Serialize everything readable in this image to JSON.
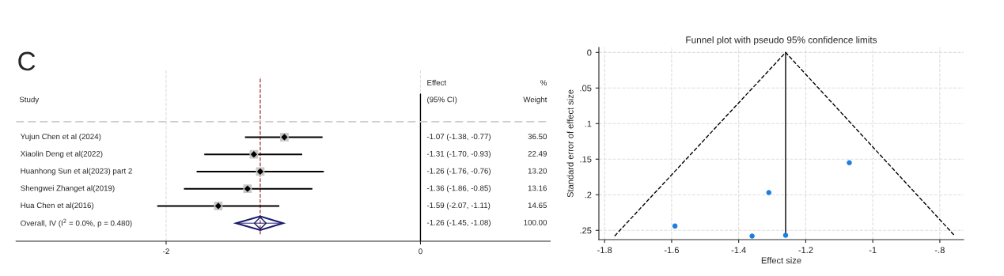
{
  "chart_data": [
    {
      "type": "scatter",
      "orientation": "horizontal",
      "categories": [
        "Yujun Chen et al (2024)",
        "Xiaolin Deng et al(2022)",
        "Huanhong Sun et al(2023) part 2",
        "Shengwei Zhanget al(2019)",
        "Hua Chen et al(2016)",
        "Overall, IV (I$^{2}$ = 0.0%, p = 0.480)"
      ],
      "series": [
        {
          "type": "scatter",
          "color": "#000000",
          "marker": "diamond",
          "values": [
            -1.07,
            -1.31,
            -1.26,
            -1.36,
            -1.59,
            null
          ],
          "errors": [
            [
              -1.38,
              -0.77
            ],
            [
              -1.7,
              -0.93
            ],
            [
              -1.76,
              -0.76
            ],
            [
              -1.86,
              -0.85
            ],
            [
              -2.07,
              -1.11
            ],
            null
          ]
        },
        {
          "type": "scatter",
          "color": "#1a1a6e",
          "marker": "diamond",
          "values": [
            null,
            null,
            null,
            null,
            null,
            -1.26
          ],
          "errors": [
            null,
            null,
            null,
            null,
            null,
            [
              -1.45,
              -1.08
            ]
          ]
        }
      ],
      "xlim": [
        -3.18,
        1.02
      ],
      "xticks": [
        -2,
        0
      ],
      "grid": "x",
      "tick_labels": "x",
      "ref_lines": [
        {
          "axis": "x",
          "value": -1.26,
          "color": "#a03030",
          "line_style": "dashed"
        },
        {
          "axis": "x",
          "value": 0,
          "color": "#000000",
          "line_style": "solid"
        }
      ],
      "annotations": [
        "C",
        "Study",
        "Effect",
        "(95% CI)",
        "%",
        "Weight",
        "-1.07 (-1.38, -0.77)",
        "36.50",
        "-1.31 (-1.70, -0.93)",
        "22.49",
        "-1.26 (-1.76, -0.76)",
        "13.20",
        "-1.36 (-1.86, -0.85)",
        "13.16",
        "-1.59 (-2.07, -1.11)",
        "14.65",
        "-1.26 (-1.45, -1.08)",
        "100.00"
      ]
    },
    {
      "type": "scatter",
      "title": "Funnel plot with pseudo 95% confidence limits",
      "xlabel": "Effect size",
      "ylabel": "Standard error of effect size",
      "series": [
        {
          "type": "scatter",
          "color": "#1f7fe0",
          "marker": "circle",
          "x": [
            -1.07,
            -1.31,
            -1.59,
            -1.36,
            -1.26
          ],
          "values": [
            0.155,
            0.197,
            0.244,
            0.258,
            0.257
          ]
        },
        {
          "type": "line",
          "color": "#000000",
          "line_style": "dashed",
          "marker": "none",
          "x": [
            -1.77,
            -1.26,
            -0.755
          ],
          "values": [
            0.258,
            0,
            0.258
          ]
        },
        {
          "type": "line",
          "color": "#000000",
          "line_style": "solid",
          "marker": "none",
          "x": [
            -1.26,
            -1.26
          ],
          "values": [
            0,
            0.258
          ]
        }
      ],
      "xlim": [
        -1.817,
        -0.729
      ],
      "ylim": [
        0.263,
        -0.007
      ],
      "xticks": [
        -1.8,
        -1.6,
        -1.4,
        -1.2,
        -1,
        {
          "value": -0.8,
          "label": "-.8"
        }
      ],
      "yticks": [
        0,
        {
          "value": 0.05,
          "label": ".05"
        },
        {
          "value": 0.1,
          "label": ".1"
        },
        {
          "value": 0.15,
          "label": ".15"
        },
        {
          "value": 0.2,
          "label": ".2"
        },
        {
          "value": 0.25,
          "label": ".25"
        }
      ],
      "grid": true
    }
  ]
}
